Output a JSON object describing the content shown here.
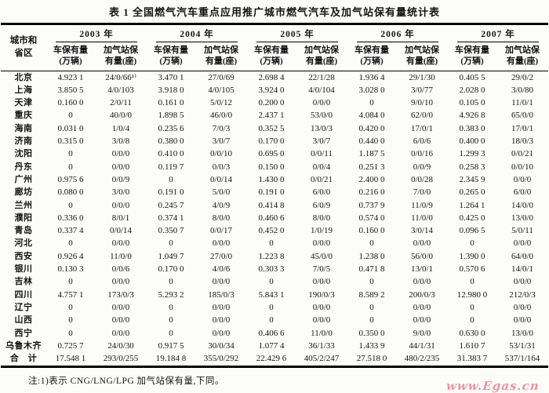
{
  "page": {
    "title": "表 1  全国燃气汽车重点应用推广城市燃气汽车及加气站保有量统计表",
    "note": "注:1)表示 CNG/LNG/LPG 加气站保有量,下同。",
    "watermark": "www.Egas.cn",
    "watermark_color": "#e8959f"
  },
  "table": {
    "corner_line1": "城市和",
    "corner_line2": "省区",
    "years": [
      "2003 年",
      "2004 年",
      "2005 年",
      "2006 年",
      "2007 年"
    ],
    "col_vehicles": [
      "车保有量",
      "(万辆)"
    ],
    "col_stations": [
      "加气站保",
      "有量(座)"
    ],
    "rows": [
      {
        "name": "北京",
        "cells": [
          "4.923 1",
          "24/0/66¹⁾",
          "3.470 1",
          "27/0/69",
          "2.698 4",
          "22/1/28",
          "1.936 4",
          "29/1/30",
          "0.405 5",
          "29/0/2"
        ]
      },
      {
        "name": "上海",
        "cells": [
          "3.850 5",
          "4/0/103",
          "3.918 0",
          "4/0/105",
          "3.924 0",
          "4/0/104",
          "3.028 0",
          "3/0/77",
          "2.028 0",
          "3/0/80"
        ]
      },
      {
        "name": "天津",
        "cells": [
          "0.160 0",
          "2/0/11",
          "0.161 0",
          "5/0/12",
          "0.200 0",
          "0/0/0",
          "0",
          "9/0/10",
          "0.105 0",
          "11/0/1"
        ]
      },
      {
        "name": "重庆",
        "cells": [
          "0",
          "40/0/0",
          "1.898 5",
          "46/0/0",
          "2.437 1",
          "53/0/0",
          "4.084 0",
          "62/0/0",
          "4.926 8",
          "65/0/0"
        ]
      },
      {
        "name": "海南",
        "cells": [
          "0.031 0",
          "1/0/4",
          "0.235 6",
          "7/0/3",
          "0.352 5",
          "13/0/3",
          "0.420 0",
          "17/0/1",
          "0.383 0",
          "17/0/1"
        ]
      },
      {
        "name": "济南",
        "cells": [
          "0.315 0",
          "3/0/8",
          "0.380 0",
          "3/0/7",
          "0.170 0",
          "3/0/7",
          "0.440 0",
          "6/0/6",
          "0.400 0",
          "18/0/3"
        ]
      },
      {
        "name": "沈阳",
        "cells": [
          "0",
          "0/0/0",
          "0.410 0",
          "0/0/10",
          "0.695 0",
          "0/0/11",
          "1.187 5",
          "0/0/16",
          "1.299 3",
          "0/0/21"
        ]
      },
      {
        "name": "丹东",
        "cells": [
          "0",
          "0/0/0",
          "0.119 7",
          "0/0/3",
          "0.150 0",
          "0/0/4",
          "0.251 3",
          "0/0/9",
          "0.258 3",
          "0/0/10"
        ]
      },
      {
        "name": "广州",
        "cells": [
          "0.975 6",
          "0/0/9",
          "0",
          "0/0/14",
          "1.430 0",
          "0/0/21",
          "2.400 0",
          "0/0/28",
          "2.345 9",
          "0/0/0"
        ]
      },
      {
        "name": "廊坊",
        "cells": [
          "0.080 0",
          "3/0/0",
          "0.191 0",
          "5/0/0",
          "0.191 0",
          "6/0/0",
          "0.216 0",
          "7/0/0",
          "0.265 0",
          "6/0/0"
        ]
      },
      {
        "name": "兰州",
        "cells": [
          "0",
          "0/0/0",
          "0.245 7",
          "4/0/9",
          "0.414 8",
          "6/0/9",
          "0.737 9",
          "11/0/9",
          "1.264 1",
          "14/0/0"
        ]
      },
      {
        "name": "濮阳",
        "cells": [
          "0.336 0",
          "8/0/1",
          "0.374 1",
          "8/0/0",
          "0.460 6",
          "8/0/0",
          "0.574 0",
          "11/0/0",
          "0.425 0",
          "13/0/0"
        ]
      },
      {
        "name": "青岛",
        "cells": [
          "0.337 4",
          "0/0/14",
          "0.350 7",
          "0/0/17",
          "0.452 0",
          "1/0/19",
          "0.160 0",
          "3/0/14",
          "0.096 5",
          "5/0/11"
        ]
      },
      {
        "name": "河北",
        "cells": [
          "0",
          "0/0/0",
          "0",
          "0/0/0",
          "0",
          "0/0/0",
          "0",
          "0/0/0",
          "0",
          "0/0/0"
        ]
      },
      {
        "name": "西安",
        "cells": [
          "0.926 4",
          "11/0/0",
          "1.049 7",
          "27/0/0",
          "1.223 8",
          "45/0/0",
          "1.238 0",
          "56/0/0",
          "1.390 0",
          "64/0/0"
        ]
      },
      {
        "name": "银川",
        "cells": [
          "0.130 3",
          "0/0/6",
          "0.170 0",
          "4/0/6",
          "0.303 3",
          "7/0/5",
          "0.471 8",
          "13/0/1",
          "0.570 6",
          "14/0/1"
        ]
      },
      {
        "name": "吉林",
        "cells": [
          "0",
          "0/0/0",
          "0",
          "0/0/0",
          "0",
          "0/0/0",
          "0",
          "0/0/0",
          "0",
          "0/0/0"
        ]
      },
      {
        "name": "四川",
        "cells": [
          "4.757 1",
          "173/0/3",
          "5.293 2",
          "185/0/3",
          "5.843 1",
          "190/0/3",
          "8.589 2",
          "200/0/3",
          "12.980 0",
          "212/0/3"
        ]
      },
      {
        "name": "辽宁",
        "cells": [
          "0",
          "0/0/0",
          "0",
          "0/0/0",
          "0",
          "0/0/0",
          "0",
          "0/0/0",
          "0",
          "0/0/0"
        ]
      },
      {
        "name": "山西",
        "cells": [
          "0",
          "0/0/0",
          "0",
          "0/0/0",
          "0",
          "0/0/0",
          "0",
          "0/0/0",
          "0",
          "0/0/0"
        ]
      },
      {
        "name": "西宁",
        "cells": [
          "0",
          "0/0/0",
          "0",
          "0/0/0",
          "0.406 6",
          "11/0/0",
          "0.350 0",
          "9/0/0",
          "0.630 0",
          "13/0/0"
        ]
      },
      {
        "name": "乌鲁木齐",
        "cells": [
          "0.725 7",
          "24/0/30",
          "0.917 5",
          "30/0/34",
          "1.077 4",
          "36/1/33",
          "1.433 9",
          "44/1/31",
          "1.610 7",
          "53/1/31"
        ]
      },
      {
        "name": "合　计",
        "total": true,
        "cells": [
          "17.548 1",
          "293/0/255",
          "19.184 8",
          "355/0/292",
          "22.429 6",
          "405/2/247",
          "27.518 0",
          "480/2/235",
          "31.383 7",
          "537/1/164"
        ]
      }
    ]
  }
}
